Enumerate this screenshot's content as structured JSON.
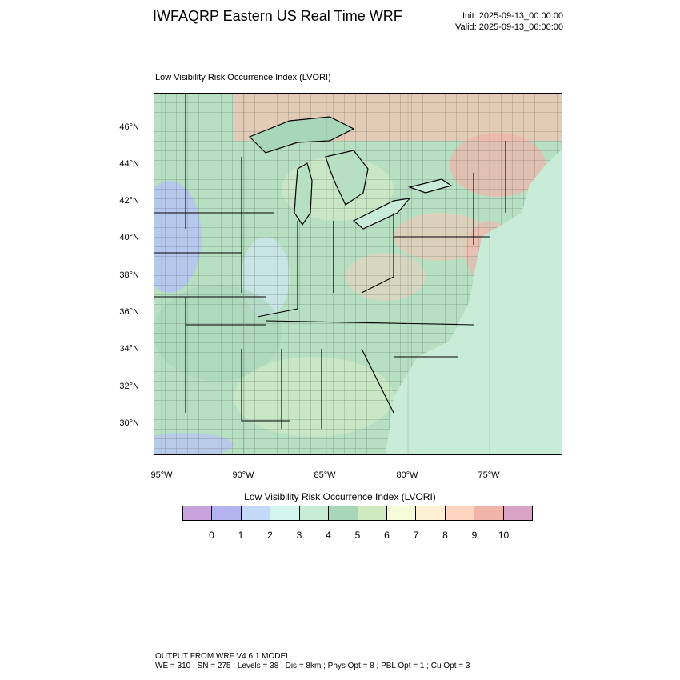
{
  "header": {
    "title": "IWFAQRP Eastern US Real Time WRF",
    "init": "Init: 2025-09-13_00:00:00",
    "valid": "Valid: 2025-09-13_06:00:00"
  },
  "map": {
    "subtitle": "Low Visibility Risk Occurrence Index   (LVORI)",
    "lat_labels": [
      "46°N",
      "44°N",
      "42°N",
      "40°N",
      "38°N",
      "36°N",
      "34°N",
      "32°N",
      "30°N"
    ],
    "lon_labels": [
      "95°W",
      "90°W",
      "85°W",
      "80°W",
      "75°W"
    ],
    "colors": {
      "ocean": "#c9ecd9",
      "land": "#b7dfc2",
      "high_risk": "#f4b8aa",
      "low_risk": "#b6c6f2",
      "boundary": "#000000"
    }
  },
  "colorbar": {
    "title": "Low Visibility Risk Occurrence Index  (LVORI)",
    "labels": [
      "0",
      "1",
      "2",
      "3",
      "4",
      "5",
      "6",
      "7",
      "8",
      "9",
      "10"
    ],
    "colors": [
      "#c9a3dc",
      "#b2b2ee",
      "#c4d8f8",
      "#d2f6ee",
      "#c6ecd6",
      "#a8d6b8",
      "#cfeac0",
      "#f5fbd8",
      "#fdf0d4",
      "#fcd4c0",
      "#f1b4aa",
      "#d9a3c6"
    ]
  },
  "footer": {
    "line1": "OUTPUT FROM WRF V4.6.1 MODEL",
    "line2": "WE = 310 ; SN = 275 ; Levels = 38 ; Dis = 8km ; Phys Opt = 8 ; PBL Opt = 1 ; Cu Opt = 3"
  }
}
